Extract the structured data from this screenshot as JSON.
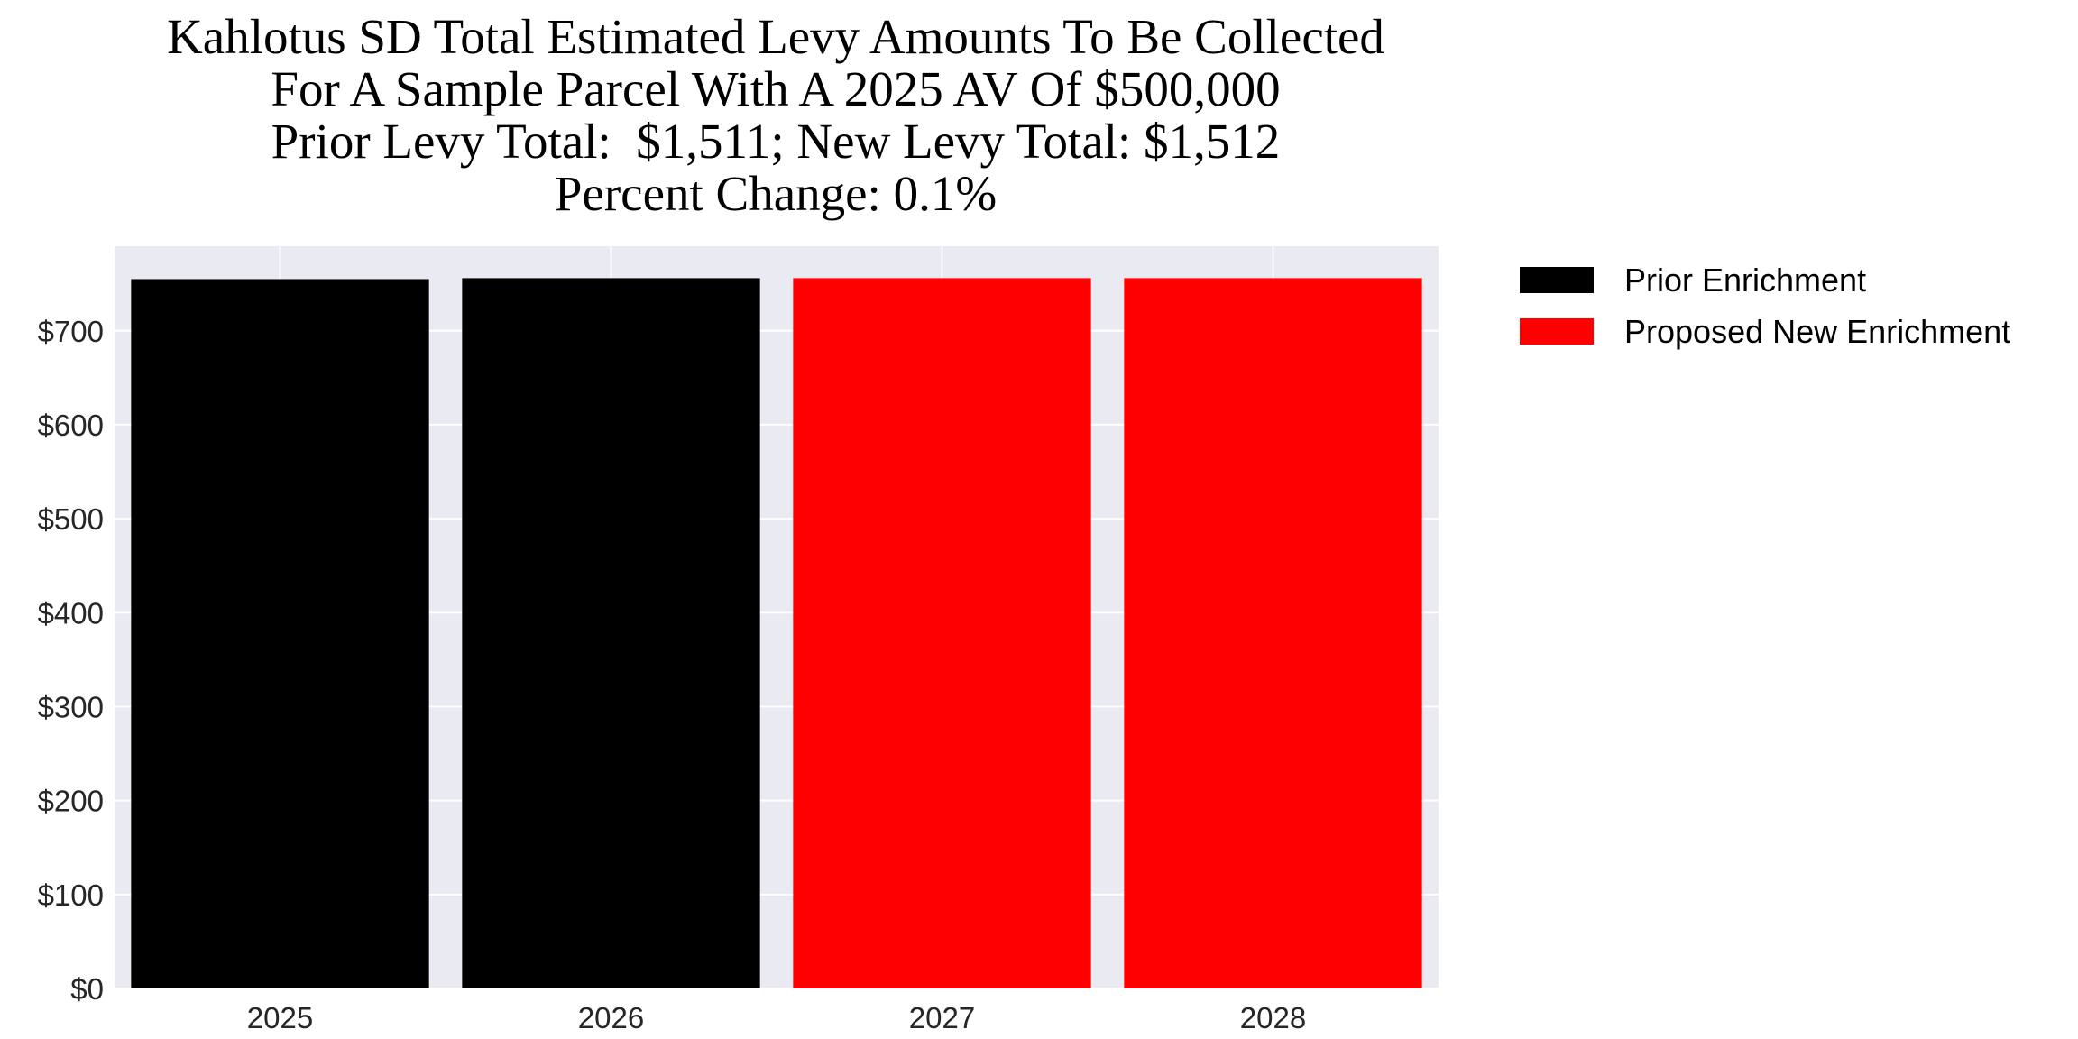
{
  "chart_data": {
    "type": "bar",
    "title": [
      "Kahlotus SD Total Estimated Levy Amounts To Be Collected",
      "For A Sample Parcel With A 2025 AV Of $500,000",
      "Prior Levy Total:  $1,511; New Levy Total: $1,512",
      "Percent Change: 0.1%"
    ],
    "categories": [
      "2025",
      "2026",
      "2027",
      "2028"
    ],
    "values": [
      755,
      756,
      756,
      756
    ],
    "bar_series": [
      "Prior Enrichment",
      "Prior Enrichment",
      "Proposed New Enrichment",
      "Proposed New Enrichment"
    ],
    "legend": [
      {
        "name": "Prior Enrichment",
        "color": "#000000"
      },
      {
        "name": "Proposed New Enrichment",
        "color": "#ff0000"
      }
    ],
    "legend_placement": "outside-top-right",
    "ylim": [
      0,
      790
    ],
    "yticks": [
      0,
      100,
      200,
      300,
      400,
      500,
      600,
      700
    ],
    "ytick_labels": [
      "$0",
      "$100",
      "$200",
      "$300",
      "$400",
      "$500",
      "$600",
      "$700"
    ],
    "xlabel": "",
    "ylabel": "",
    "grid": true,
    "background": "#eaeaf2"
  }
}
